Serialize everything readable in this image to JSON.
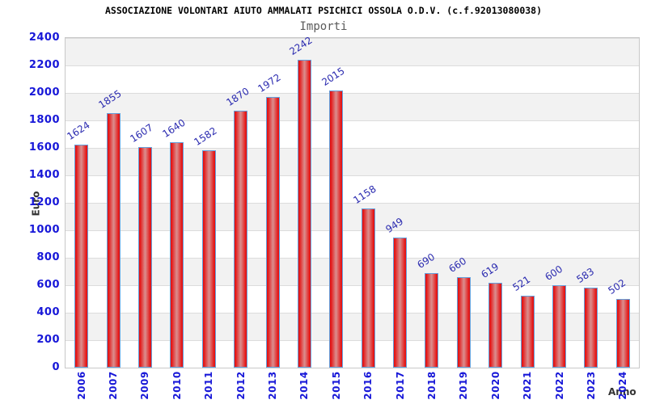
{
  "header": {
    "title": "ASSOCIAZIONE VOLONTARI AIUTO AMMALATI PSICHICI OSSOLA O.D.V. (c.f.92013080038)",
    "subtitle": "Importi"
  },
  "chart_data": {
    "type": "bar",
    "title": "Importi",
    "xlabel": "Anno",
    "ylabel": "Euro",
    "categories": [
      "2006",
      "2007",
      "2009",
      "2010",
      "2011",
      "2012",
      "2013",
      "2014",
      "2015",
      "2016",
      "2017",
      "2018",
      "2019",
      "2020",
      "2021",
      "2022",
      "2023",
      "2024"
    ],
    "values": [
      1624,
      1855,
      1607,
      1640,
      1582,
      1870,
      1972,
      2242,
      2015,
      1158,
      949,
      690,
      660,
      619,
      521,
      600,
      583,
      502
    ],
    "ylim": [
      0,
      2400
    ],
    "y_ticks": [
      0,
      200,
      400,
      600,
      800,
      1000,
      1200,
      1400,
      1600,
      1800,
      2000,
      2200,
      2400
    ],
    "grid": true,
    "legend_position": "none",
    "colors": {
      "bar_edge": "#e41414",
      "bar_center": "#db8a8a",
      "bar_border": "#64a0dc",
      "tick_label": "#1717d8",
      "value_label": "#2b2bb0",
      "band_gray": "#f2f2f2",
      "band_white": "#ffffff",
      "gridline": "#dcdcdc",
      "plot_border": "#c8c8c8",
      "axis_title": "#333333",
      "subtitle": "#5a5a5a",
      "title": "#000000"
    }
  }
}
